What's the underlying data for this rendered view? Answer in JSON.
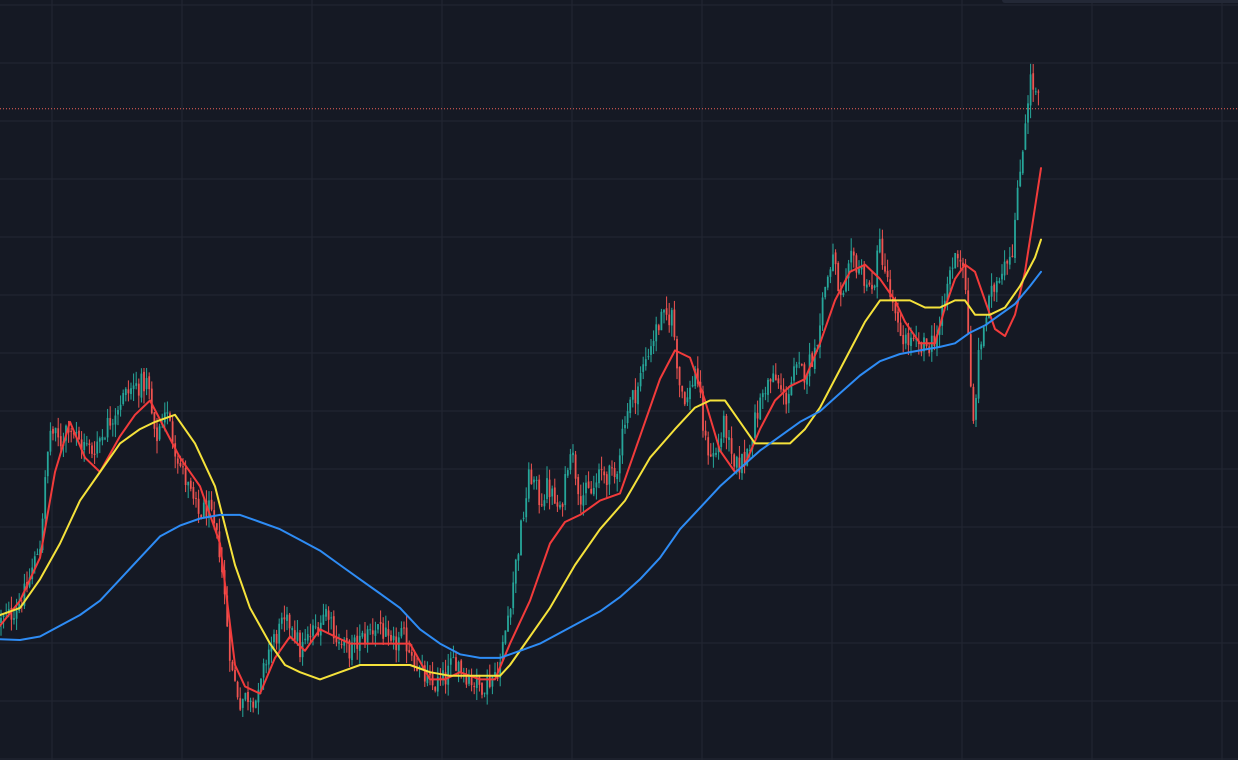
{
  "chart_data": {
    "type": "candlestick",
    "theme": {
      "background": "#151924",
      "grid": "#222633",
      "up": "#26a69a",
      "down": "#ef5350",
      "price_line": "#f0625a"
    },
    "grid": true,
    "legend": "none",
    "axis_labels_visible": false,
    "y_range": [
      0,
      100
    ],
    "price_line_level": 90.8,
    "series": [
      {
        "name": "",
        "color": "#f23b3b",
        "points": [
          [
            0,
            18.5
          ],
          [
            20,
            22
          ],
          [
            40,
            28
          ],
          [
            55,
            40
          ],
          [
            70,
            47
          ],
          [
            85,
            42
          ],
          [
            100,
            40
          ],
          [
            120,
            45
          ],
          [
            135,
            48
          ],
          [
            150,
            50
          ],
          [
            165,
            46
          ],
          [
            180,
            42
          ],
          [
            200,
            38
          ],
          [
            220,
            30
          ],
          [
            235,
            13
          ],
          [
            245,
            10
          ],
          [
            260,
            9
          ],
          [
            275,
            14
          ],
          [
            290,
            17
          ],
          [
            305,
            15
          ],
          [
            320,
            18
          ],
          [
            335,
            17
          ],
          [
            350,
            16
          ],
          [
            370,
            16
          ],
          [
            395,
            16
          ],
          [
            410,
            16
          ],
          [
            430,
            11
          ],
          [
            445,
            11
          ],
          [
            460,
            12
          ],
          [
            480,
            11
          ],
          [
            495,
            11
          ],
          [
            510,
            16
          ],
          [
            530,
            22
          ],
          [
            550,
            30
          ],
          [
            565,
            33
          ],
          [
            580,
            34
          ],
          [
            600,
            36
          ],
          [
            620,
            37
          ],
          [
            640,
            45
          ],
          [
            660,
            53
          ],
          [
            675,
            57
          ],
          [
            690,
            56
          ],
          [
            705,
            50
          ],
          [
            720,
            43
          ],
          [
            735,
            40
          ],
          [
            745,
            41
          ],
          [
            760,
            46
          ],
          [
            775,
            50
          ],
          [
            790,
            52
          ],
          [
            805,
            53
          ],
          [
            820,
            58
          ],
          [
            835,
            64
          ],
          [
            850,
            68
          ],
          [
            865,
            69
          ],
          [
            880,
            67
          ],
          [
            895,
            64
          ],
          [
            905,
            61
          ],
          [
            920,
            58
          ],
          [
            935,
            58
          ],
          [
            945,
            63
          ],
          [
            955,
            67
          ],
          [
            965,
            69
          ],
          [
            975,
            68
          ],
          [
            985,
            64
          ],
          [
            995,
            60
          ],
          [
            1005,
            59
          ],
          [
            1015,
            62
          ],
          [
            1025,
            68
          ],
          [
            1035,
            77
          ],
          [
            1041,
            82.5
          ]
        ]
      },
      {
        "name": "",
        "color": "#f5e23b",
        "points": [
          [
            0,
            20
          ],
          [
            20,
            21
          ],
          [
            40,
            25
          ],
          [
            60,
            30
          ],
          [
            80,
            36
          ],
          [
            100,
            40
          ],
          [
            120,
            44
          ],
          [
            140,
            46
          ],
          [
            155,
            47
          ],
          [
            175,
            48
          ],
          [
            195,
            44
          ],
          [
            215,
            38
          ],
          [
            235,
            27
          ],
          [
            250,
            21
          ],
          [
            270,
            16
          ],
          [
            285,
            13
          ],
          [
            300,
            12
          ],
          [
            320,
            11
          ],
          [
            340,
            12
          ],
          [
            360,
            13
          ],
          [
            380,
            13
          ],
          [
            395,
            13
          ],
          [
            410,
            13
          ],
          [
            430,
            12
          ],
          [
            450,
            11.5
          ],
          [
            470,
            11.5
          ],
          [
            485,
            11.5
          ],
          [
            500,
            11.5
          ],
          [
            510,
            13
          ],
          [
            530,
            17
          ],
          [
            550,
            21
          ],
          [
            575,
            27
          ],
          [
            600,
            32
          ],
          [
            625,
            36
          ],
          [
            650,
            42
          ],
          [
            675,
            46
          ],
          [
            695,
            49
          ],
          [
            710,
            50
          ],
          [
            725,
            50
          ],
          [
            740,
            47
          ],
          [
            755,
            44
          ],
          [
            770,
            44
          ],
          [
            790,
            44
          ],
          [
            805,
            46
          ],
          [
            820,
            49
          ],
          [
            835,
            53
          ],
          [
            850,
            57
          ],
          [
            865,
            61
          ],
          [
            880,
            64
          ],
          [
            895,
            64
          ],
          [
            910,
            64
          ],
          [
            925,
            63
          ],
          [
            940,
            63
          ],
          [
            955,
            64
          ],
          [
            965,
            64
          ],
          [
            975,
            62
          ],
          [
            990,
            62
          ],
          [
            1005,
            63
          ],
          [
            1020,
            66
          ],
          [
            1035,
            70
          ],
          [
            1041,
            72.5
          ]
        ]
      },
      {
        "name": "",
        "color": "#2e8cf5",
        "points": [
          [
            0,
            16.6
          ],
          [
            20,
            16.5
          ],
          [
            40,
            17
          ],
          [
            60,
            18.5
          ],
          [
            80,
            20
          ],
          [
            100,
            22
          ],
          [
            120,
            25
          ],
          [
            140,
            28
          ],
          [
            160,
            31
          ],
          [
            180,
            32.5
          ],
          [
            200,
            33.5
          ],
          [
            220,
            34
          ],
          [
            240,
            34
          ],
          [
            260,
            33
          ],
          [
            280,
            32
          ],
          [
            300,
            30.5
          ],
          [
            320,
            29
          ],
          [
            340,
            27
          ],
          [
            360,
            25
          ],
          [
            380,
            23
          ],
          [
            400,
            21
          ],
          [
            420,
            18
          ],
          [
            440,
            16
          ],
          [
            460,
            14.5
          ],
          [
            480,
            14
          ],
          [
            500,
            14
          ],
          [
            520,
            15
          ],
          [
            540,
            16
          ],
          [
            560,
            17.5
          ],
          [
            580,
            19
          ],
          [
            600,
            20.5
          ],
          [
            620,
            22.5
          ],
          [
            640,
            25
          ],
          [
            660,
            28
          ],
          [
            680,
            32
          ],
          [
            700,
            35
          ],
          [
            720,
            38
          ],
          [
            740,
            40.5
          ],
          [
            760,
            43
          ],
          [
            780,
            45
          ],
          [
            800,
            47
          ],
          [
            820,
            48.5
          ],
          [
            840,
            51
          ],
          [
            860,
            53.5
          ],
          [
            880,
            55.5
          ],
          [
            900,
            56.5
          ],
          [
            920,
            57
          ],
          [
            940,
            57.5
          ],
          [
            955,
            58
          ],
          [
            970,
            59.5
          ],
          [
            985,
            60.5
          ],
          [
            1000,
            62
          ],
          [
            1015,
            63.5
          ],
          [
            1030,
            66
          ],
          [
            1041,
            68
          ]
        ]
      }
    ],
    "price_path": [
      [
        0,
        19
      ],
      [
        10,
        20
      ],
      [
        25,
        23
      ],
      [
        40,
        30
      ],
      [
        50,
        46
      ],
      [
        60,
        44
      ],
      [
        68,
        47
      ],
      [
        80,
        44
      ],
      [
        92,
        43
      ],
      [
        105,
        46
      ],
      [
        120,
        50
      ],
      [
        135,
        52
      ],
      [
        148,
        52.5
      ],
      [
        155,
        44
      ],
      [
        165,
        49
      ],
      [
        180,
        41
      ],
      [
        190,
        37
      ],
      [
        198,
        34
      ],
      [
        208,
        35
      ],
      [
        220,
        29
      ],
      [
        232,
        12
      ],
      [
        240,
        8
      ],
      [
        250,
        9
      ],
      [
        258,
        8
      ],
      [
        268,
        15
      ],
      [
        280,
        18
      ],
      [
        292,
        19
      ],
      [
        300,
        15
      ],
      [
        315,
        18
      ],
      [
        328,
        21
      ],
      [
        338,
        16
      ],
      [
        350,
        15
      ],
      [
        365,
        17
      ],
      [
        380,
        19
      ],
      [
        390,
        15
      ],
      [
        402,
        17
      ],
      [
        412,
        15
      ],
      [
        420,
        12
      ],
      [
        432,
        10
      ],
      [
        445,
        11
      ],
      [
        455,
        14
      ],
      [
        465,
        12
      ],
      [
        478,
        10
      ],
      [
        490,
        11
      ],
      [
        500,
        13
      ],
      [
        508,
        20
      ],
      [
        520,
        31
      ],
      [
        530,
        40
      ],
      [
        540,
        36
      ],
      [
        548,
        38
      ],
      [
        560,
        34
      ],
      [
        570,
        44
      ],
      [
        580,
        37
      ],
      [
        592,
        37
      ],
      [
        602,
        40
      ],
      [
        615,
        39
      ],
      [
        625,
        48
      ],
      [
        638,
        52
      ],
      [
        648,
        57
      ],
      [
        660,
        61
      ],
      [
        672,
        62
      ],
      [
        680,
        52
      ],
      [
        688,
        50
      ],
      [
        696,
        55
      ],
      [
        705,
        44
      ],
      [
        715,
        42
      ],
      [
        725,
        47
      ],
      [
        733,
        40
      ],
      [
        745,
        42
      ],
      [
        755,
        47
      ],
      [
        765,
        52
      ],
      [
        775,
        53
      ],
      [
        785,
        50
      ],
      [
        795,
        54
      ],
      [
        805,
        54
      ],
      [
        815,
        57
      ],
      [
        825,
        66
      ],
      [
        833,
        70
      ],
      [
        842,
        63
      ],
      [
        852,
        70
      ],
      [
        862,
        68
      ],
      [
        872,
        65
      ],
      [
        880,
        72
      ],
      [
        888,
        66
      ],
      [
        897,
        60
      ],
      [
        910,
        58
      ],
      [
        920,
        57
      ],
      [
        930,
        58
      ],
      [
        940,
        60
      ],
      [
        950,
        68
      ],
      [
        958,
        71
      ],
      [
        965,
        68
      ],
      [
        970,
        53
      ],
      [
        973,
        46
      ],
      [
        978,
        55
      ],
      [
        983,
        60
      ],
      [
        990,
        64
      ],
      [
        997,
        67
      ],
      [
        1005,
        70
      ],
      [
        1012,
        71
      ],
      [
        1018,
        79
      ],
      [
        1025,
        89
      ],
      [
        1030,
        95
      ],
      [
        1035,
        93
      ],
      [
        1041,
        91
      ]
    ]
  }
}
